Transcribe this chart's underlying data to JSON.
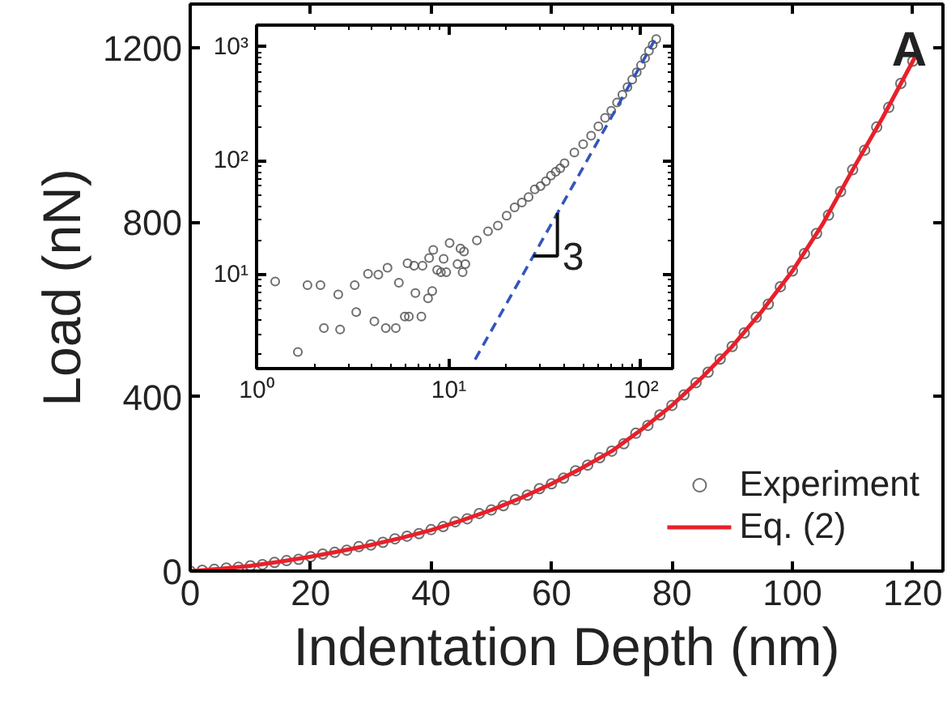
{
  "chart_data": [
    {
      "type": "scatter",
      "xlabel": "Indentation Depth (nm)",
      "ylabel": "Load (nN)",
      "xlim": [
        0,
        125
      ],
      "ylim": [
        0,
        1300
      ],
      "xticks": [
        0,
        20,
        40,
        60,
        80,
        100,
        120
      ],
      "yticks": [
        0,
        400,
        800,
        1200
      ],
      "legend": "bottom right",
      "annotations": [
        "A"
      ],
      "series": [
        {
          "name": "Experiment",
          "marker": "circle",
          "color": "#555555",
          "x": [
            0,
            2,
            4,
            6,
            8,
            10,
            12,
            14,
            16,
            18,
            20,
            22,
            24,
            26,
            28,
            30,
            32,
            34,
            36,
            38,
            40,
            42,
            44,
            46,
            48,
            50,
            52,
            54,
            56,
            58,
            60,
            62,
            64,
            66,
            68,
            70,
            72,
            74,
            76,
            78,
            80,
            82,
            84,
            86,
            88,
            90,
            92,
            94,
            96,
            98,
            100,
            102,
            104,
            106,
            108,
            110,
            112,
            114,
            116,
            118,
            120
          ],
          "values": [
            0,
            2,
            4,
            7,
            9,
            12,
            15,
            20,
            24,
            27,
            33,
            39,
            43,
            48,
            56,
            60,
            66,
            74,
            80,
            86,
            95,
            102,
            113,
            120,
            132,
            140,
            150,
            164,
            174,
            189,
            200,
            213,
            230,
            243,
            260,
            275,
            292,
            316,
            334,
            358,
            380,
            404,
            432,
            456,
            486,
            515,
            546,
            582,
            612,
            652,
            688,
            728,
            774,
            816,
            870,
            920,
            965,
            1018,
            1063,
            1118,
            1169
          ]
        },
        {
          "name": "Eq. (2)",
          "type": "line",
          "color": "#e8202a",
          "x": [
            0,
            5,
            10,
            15,
            20,
            25,
            30,
            35,
            40,
            45,
            50,
            55,
            60,
            65,
            70,
            75,
            80,
            85,
            90,
            95,
            100,
            105,
            110,
            115,
            120,
            121
          ],
          "values": [
            0,
            5,
            12,
            22,
            33,
            46,
            60,
            76,
            94,
            116,
            140,
            168,
            200,
            236,
            275,
            325,
            380,
            444,
            515,
            597,
            688,
            795,
            920,
            1040,
            1169,
            1195
          ]
        }
      ]
    },
    {
      "type": "scatter",
      "log": "xy",
      "xlim": [
        1,
        146
      ],
      "ylim": [
        1.5,
        1550
      ],
      "xticks": [
        {
          "value": 1,
          "label": "10⁰"
        },
        {
          "value": 10,
          "label": "10¹"
        },
        {
          "value": 100,
          "label": "10²"
        }
      ],
      "yticks": [
        {
          "value": 10,
          "label": "10¹"
        },
        {
          "value": 100,
          "label": "10²"
        },
        {
          "value": 1000,
          "label": "10³"
        }
      ],
      "annotations": [
        "3"
      ],
      "series": [
        {
          "marker": "circle",
          "color": "#555555",
          "x": [
            1.25,
            1.64,
            1.84,
            2.15,
            2.24,
            2.66,
            2.72,
            3.24,
            3.3,
            3.8,
            4.1,
            4.3,
            4.7,
            4.8,
            5.3,
            5.5,
            5.9,
            6.1,
            6.2,
            6.6,
            6.7,
            7.2,
            7.3,
            7.8,
            7.9,
            8.2,
            8.3,
            8.7,
            9.1,
            9.4,
            9.7,
            10.1,
            11.1,
            11.5,
            11.8,
            12.2,
            12,
            14,
            16,
            18,
            20,
            22,
            24,
            26,
            28,
            30,
            32,
            34,
            36,
            38,
            40,
            45,
            50,
            55,
            60,
            65,
            70,
            75,
            80,
            85,
            90,
            95,
            100,
            105,
            110,
            115,
            120
          ],
          "values": [
            8.7,
            2.1,
            8.1,
            8.1,
            3.4,
            6.7,
            3.3,
            8.1,
            4.7,
            10.2,
            3.9,
            10,
            3.4,
            11.5,
            3.4,
            8.5,
            4.3,
            12.6,
            4.3,
            12,
            6.9,
            4.3,
            12,
            6.2,
            14,
            7.2,
            16.5,
            11,
            10.5,
            13.8,
            10.5,
            19,
            12.4,
            17,
            10.5,
            12.4,
            16,
            20,
            24,
            27,
            33,
            39,
            43,
            48,
            56,
            60,
            66,
            74,
            80,
            86,
            95,
            118,
            140,
            166,
            200,
            238,
            275,
            324,
            380,
            443,
            515,
            598,
            688,
            794,
            920,
            1040,
            1169
          ]
        },
        {
          "type": "line",
          "color": "#3355bb",
          "line_style": "dashed",
          "x": [
            13.7,
            118
          ],
          "values": [
            1.8,
            1150
          ]
        }
      ]
    }
  ]
}
